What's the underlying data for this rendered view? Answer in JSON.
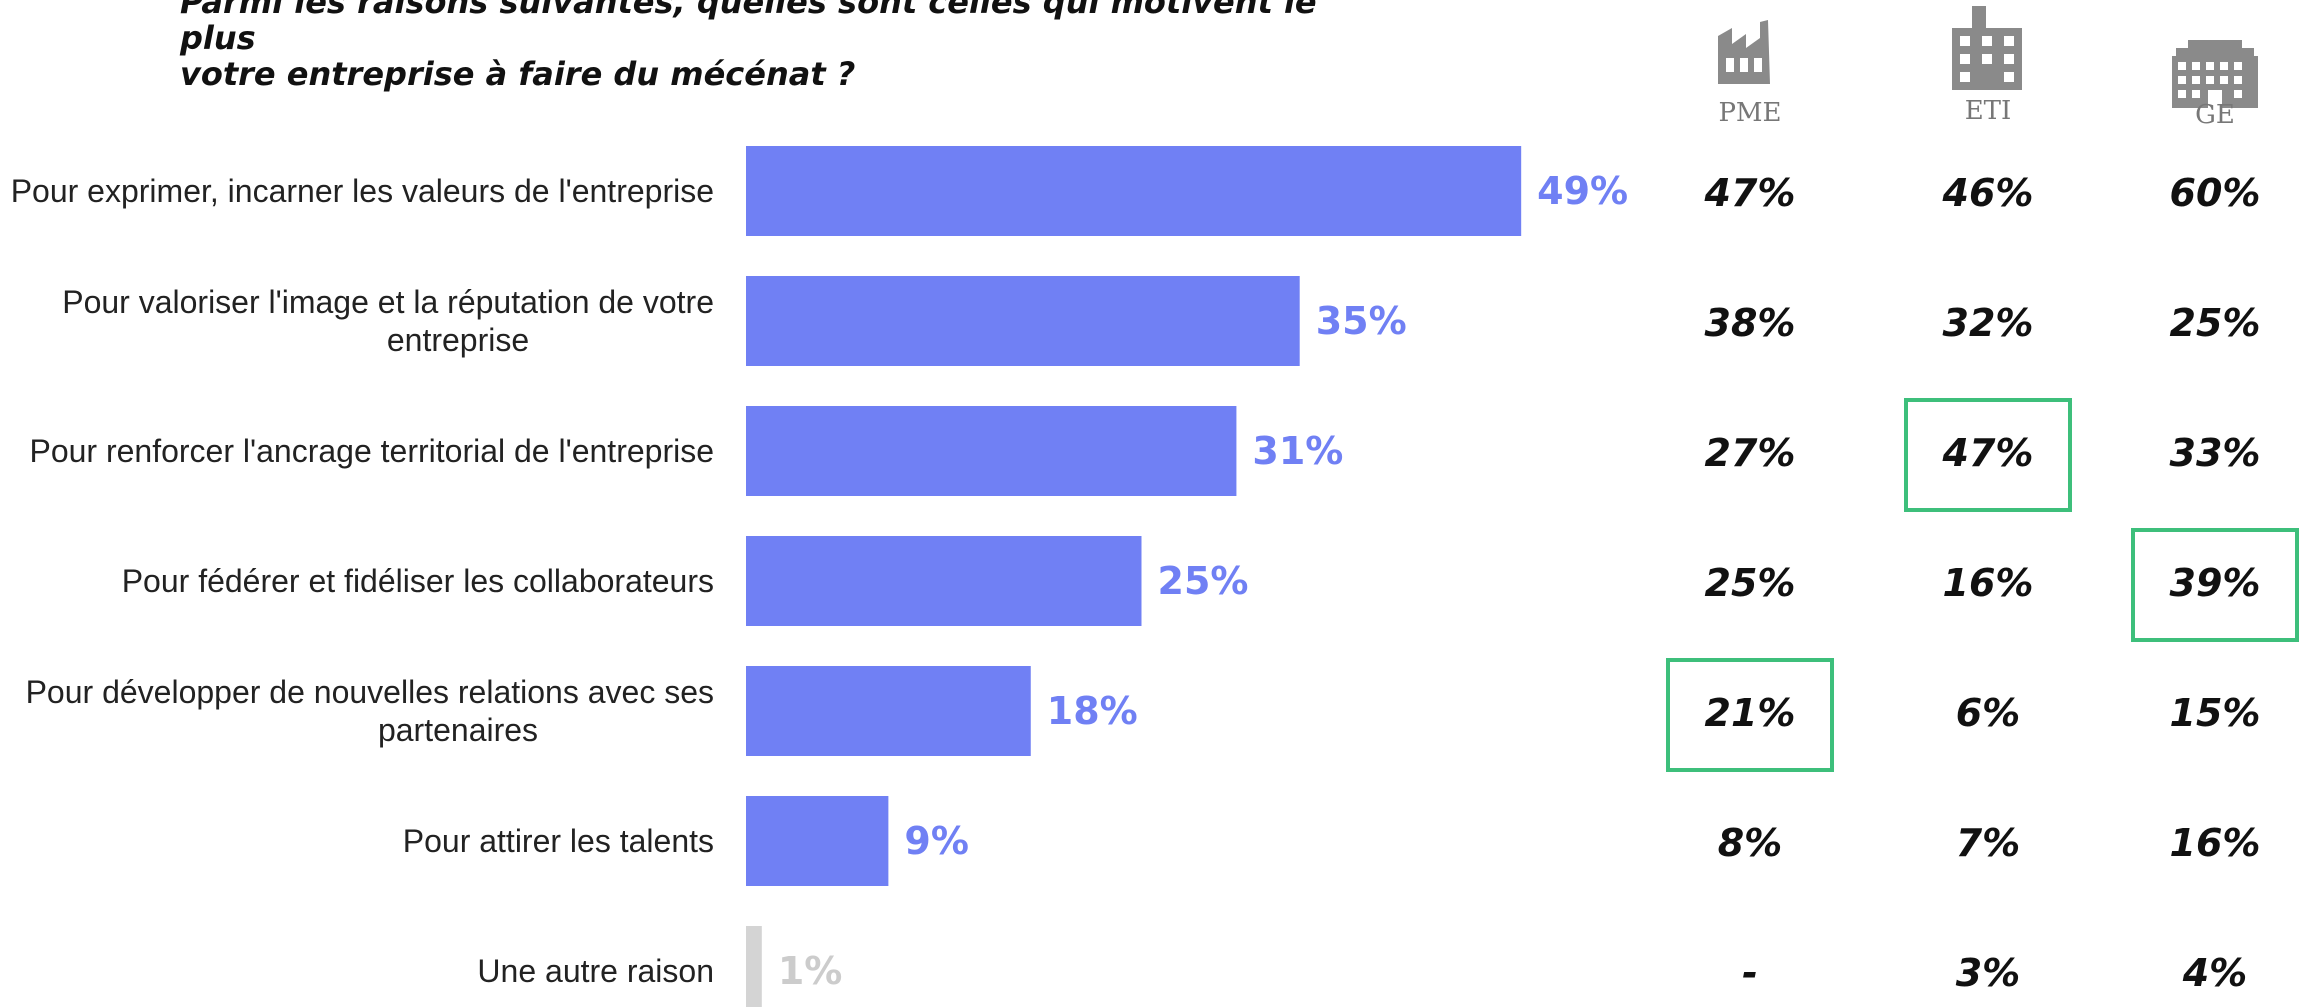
{
  "title_lines": [
    "Parmi les raisons suivantes, quelles sont celles qui motivent le plus",
    "votre entreprise à faire du mécénat ?"
  ],
  "colors": {
    "bar": "#7080f4",
    "bar_other": "#d4d4d4",
    "label_other": "#cccccc",
    "highlight": "#3dbf7b",
    "icon": "#8a8a8a"
  },
  "chart_data": {
    "type": "bar",
    "orientation": "horizontal",
    "categories": [
      "Pour exprimer, incarner les valeurs de l'entreprise",
      "Pour valoriser l'image et la réputation de votre entreprise",
      "Pour renforcer l'ancrage territorial de l'entreprise",
      "Pour fédérer et fidéliser les collaborateurs",
      "Pour développer de nouvelles relations avec ses partenaires",
      "Pour attirer les talents",
      "Une autre raison"
    ],
    "category_lines": [
      [
        "Pour exprimer, incarner les valeurs de l'entreprise"
      ],
      [
        "Pour valoriser l'image et la réputation de votre",
        "entreprise"
      ],
      [
        "Pour renforcer l'ancrage territorial de l'entreprise"
      ],
      [
        "Pour fédérer et fidéliser les collaborateurs"
      ],
      [
        "Pour développer de nouvelles relations avec ses",
        "partenaires"
      ],
      [
        "Pour attirer les talents"
      ],
      [
        "Une autre raison"
      ]
    ],
    "values": [
      49,
      35,
      31,
      25,
      18,
      9,
      1
    ],
    "value_labels": [
      "49%",
      "35%",
      "31%",
      "25%",
      "18%",
      "9%",
      "1%"
    ],
    "xlim": [
      0,
      100
    ],
    "segments": [
      {
        "name": "PME",
        "icon": "factory-icon",
        "values": [
          "47%",
          "38%",
          "27%",
          "25%",
          "21%",
          "8%",
          "-"
        ],
        "highlight_index": 4
      },
      {
        "name": "ETI",
        "icon": "building-icon",
        "values": [
          "46%",
          "32%",
          "47%",
          "16%",
          "6%",
          "7%",
          "3%"
        ],
        "highlight_index": 2
      },
      {
        "name": "GE",
        "icon": "office-block-icon",
        "values": [
          "60%",
          "25%",
          "33%",
          "39%",
          "15%",
          "16%",
          "4%"
        ],
        "highlight_index": 3
      }
    ]
  }
}
